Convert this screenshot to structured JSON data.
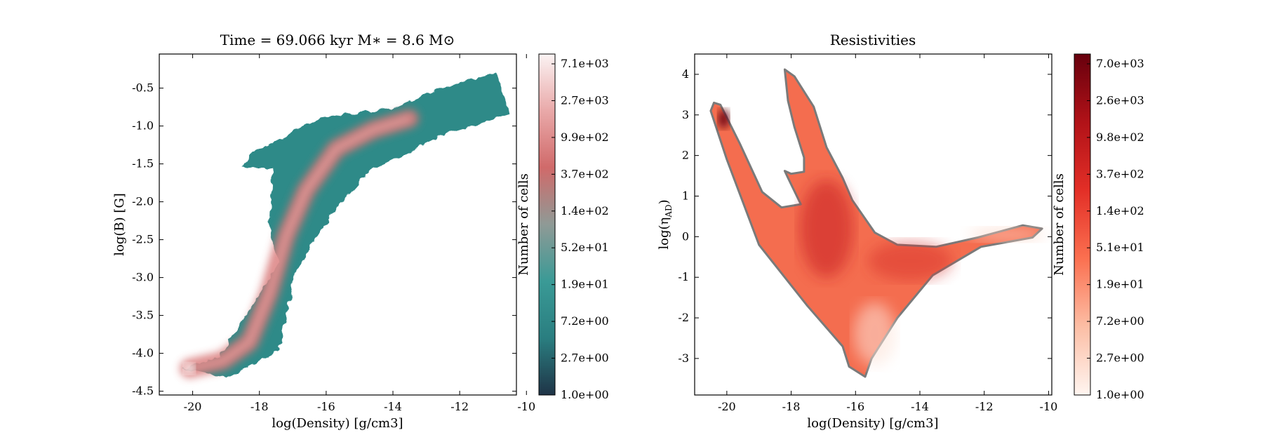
{
  "chart_data": [
    {
      "type": "heatmap",
      "title": "Time = 69.066 kyr    M∗ = 8.6 M⊙",
      "xlabel": "log(Density) [g/cm3]",
      "ylabel": "log(B) [G]",
      "xlim": [
        -21,
        -10.3
      ],
      "ylim": [
        -4.55,
        -0.05
      ],
      "xticks": [
        "-20",
        "-18",
        "-16",
        "-14",
        "-12",
        "-10"
      ],
      "xtick_values": [
        -20,
        -18,
        -16,
        -14,
        -12,
        -10
      ],
      "yticks": [
        "-0.5",
        "-1.0",
        "-1.5",
        "-2.0",
        "-2.5",
        "-3.0",
        "-3.5",
        "-4.0",
        "-4.5"
      ],
      "ytick_values": [
        -0.5,
        -1.0,
        -1.5,
        -2.0,
        -2.5,
        -3.0,
        -3.5,
        -4.0,
        -4.5
      ],
      "colorbar": {
        "label": "Number of cells",
        "scale": "log",
        "ticks": [
          "7.1e+03",
          "2.7e+03",
          "9.9e+02",
          "3.7e+02",
          "1.4e+02",
          "5.2e+01",
          "1.9e+01",
          "7.2e+00",
          "2.7e+00",
          "1.0e+00"
        ],
        "colors": [
          "#1f3447",
          "#2a7e80",
          "#3a9a96",
          "#8f9a96",
          "#d06a6a",
          "#e9a9a9",
          "#fbf3f3"
        ]
      },
      "region": {
        "description_points": [
          [
            -20.3,
            -4.2
          ],
          [
            -19.0,
            -4.32
          ],
          [
            -17.4,
            -3.95
          ],
          [
            -16.9,
            -2.9
          ],
          [
            -15.9,
            -2.2
          ],
          [
            -14.7,
            -1.6
          ],
          [
            -12.4,
            -1.1
          ],
          [
            -10.5,
            -0.85
          ],
          [
            -10.9,
            -0.3
          ],
          [
            -12.6,
            -0.5
          ],
          [
            -13.9,
            -0.75
          ],
          [
            -16.2,
            -0.9
          ],
          [
            -18.2,
            -1.35
          ],
          [
            -18.5,
            -1.55
          ],
          [
            -17.6,
            -1.55
          ],
          [
            -17.7,
            -2.4
          ],
          [
            -17.4,
            -2.8
          ],
          [
            -19.2,
            -4.05
          ]
        ],
        "ridge": [
          [
            -20.1,
            -4.2
          ],
          [
            -19.1,
            -4.1
          ],
          [
            -18.3,
            -3.85
          ],
          [
            -17.7,
            -3.2
          ],
          [
            -17.2,
            -2.45
          ],
          [
            -16.6,
            -1.85
          ],
          [
            -15.7,
            -1.3
          ],
          [
            -14.6,
            -1.05
          ],
          [
            -13.5,
            -0.9
          ]
        ]
      }
    },
    {
      "type": "heatmap",
      "title": "Resistivities",
      "xlabel": "log(Density) [g/cm3]",
      "ylabel": "log(η",
      "ylabel_sub": "AD",
      "ylabel_close": ")",
      "xlim": [
        -21,
        -9.9
      ],
      "ylim": [
        -3.9,
        4.5
      ],
      "xticks": [
        "-20",
        "-18",
        "-16",
        "-14",
        "-12",
        "-10"
      ],
      "xtick_values": [
        -20,
        -18,
        -16,
        -14,
        -12,
        -10
      ],
      "yticks": [
        "4",
        "3",
        "2",
        "1",
        "0",
        "-1",
        "-2",
        "-3"
      ],
      "ytick_values": [
        4,
        3,
        2,
        1,
        0,
        -1,
        -2,
        -3
      ],
      "colorbar": {
        "label": "Number of cells",
        "scale": "log",
        "ticks": [
          "7.0e+03",
          "2.6e+03",
          "9.8e+02",
          "3.7e+02",
          "1.4e+02",
          "5.1e+01",
          "1.9e+01",
          "7.2e+00",
          "2.7e+00",
          "1.0e+00"
        ],
        "colors": [
          "#fff5f0",
          "#fcbea5",
          "#fb7050",
          "#e32f27",
          "#b11218",
          "#67000d"
        ]
      },
      "region": {
        "outline": [
          [
            -20.4,
            3.3
          ],
          [
            -20.2,
            3.25
          ],
          [
            -19.6,
            2.3
          ],
          [
            -18.9,
            1.1
          ],
          [
            -18.3,
            0.72
          ],
          [
            -17.7,
            0.8
          ],
          [
            -18.1,
            1.45
          ],
          [
            -18.2,
            1.62
          ],
          [
            -18.0,
            1.55
          ],
          [
            -17.6,
            1.6
          ],
          [
            -17.6,
            1.95
          ],
          [
            -17.9,
            2.7
          ],
          [
            -18.1,
            3.35
          ],
          [
            -18.2,
            4.12
          ],
          [
            -17.9,
            3.95
          ],
          [
            -17.3,
            3.2
          ],
          [
            -16.9,
            2.2
          ],
          [
            -16.4,
            1.45
          ],
          [
            -16.1,
            0.9
          ],
          [
            -15.4,
            0.1
          ],
          [
            -14.7,
            -0.2
          ],
          [
            -13.5,
            -0.25
          ],
          [
            -12.2,
            -0.02
          ],
          [
            -10.8,
            0.28
          ],
          [
            -10.2,
            0.2
          ],
          [
            -10.5,
            -0.02
          ],
          [
            -12.1,
            -0.25
          ],
          [
            -13.6,
            -0.95
          ],
          [
            -14.7,
            -2.0
          ],
          [
            -15.5,
            -3.0
          ],
          [
            -15.7,
            -3.45
          ],
          [
            -16.2,
            -3.2
          ],
          [
            -16.4,
            -2.7
          ],
          [
            -17.5,
            -1.7
          ],
          [
            -19.0,
            -0.2
          ],
          [
            -20.0,
            1.9
          ],
          [
            -20.5,
            3.1
          ]
        ],
        "peaks": [
          [
            -20.1,
            2.9
          ],
          [
            -16.9,
            0.2
          ],
          [
            -14.3,
            -0.6
          ]
        ]
      }
    }
  ]
}
